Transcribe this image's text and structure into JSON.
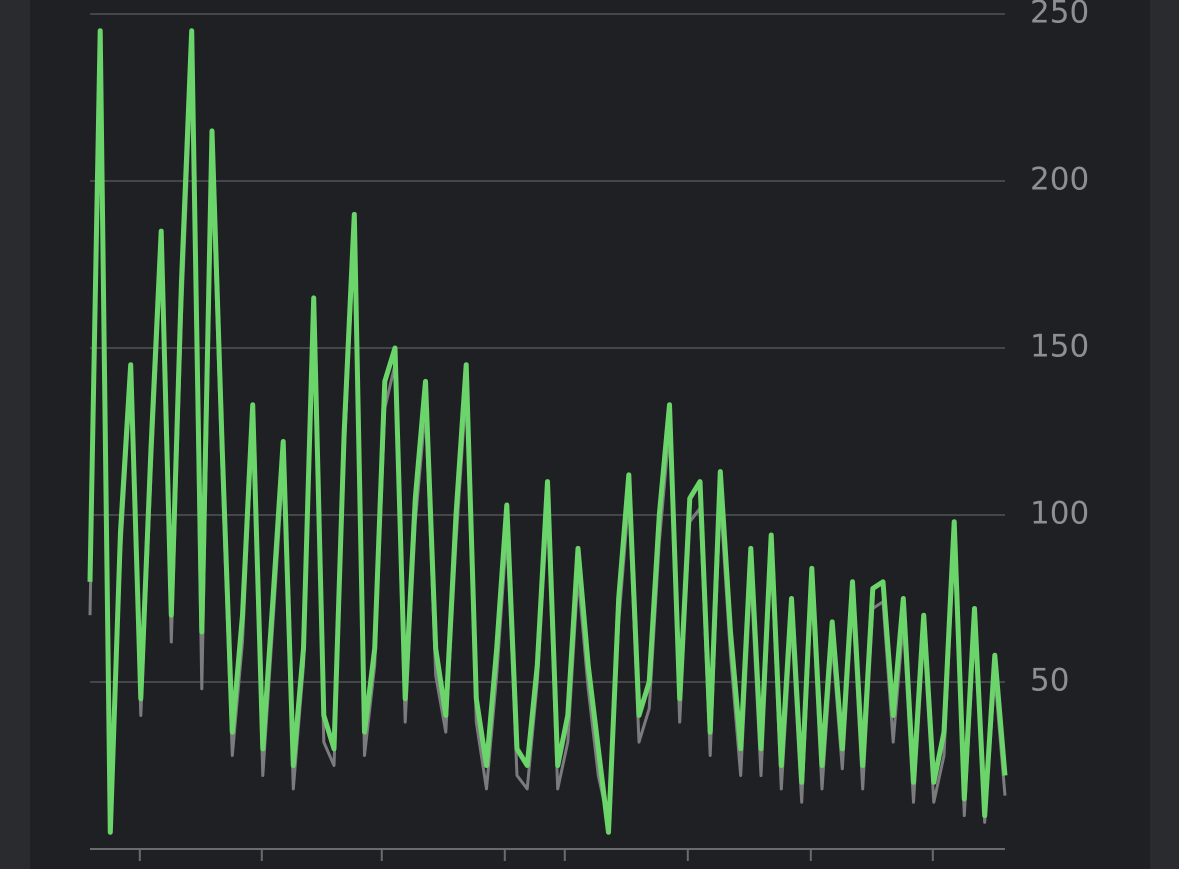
{
  "chart_data": {
    "type": "line",
    "x": [
      0,
      1,
      2,
      3,
      4,
      5,
      6,
      7,
      8,
      9,
      10,
      11,
      12,
      13,
      14,
      15,
      16,
      17,
      18,
      19,
      20,
      21,
      22,
      23,
      24,
      25,
      26,
      27,
      28,
      29,
      30,
      31,
      32,
      33,
      34,
      35,
      36,
      37,
      38,
      39,
      40,
      41,
      42,
      43,
      44,
      45,
      46,
      47,
      48,
      49,
      50,
      51,
      52,
      53,
      54,
      55,
      56,
      57,
      58,
      59,
      60,
      61,
      62,
      63,
      64,
      65,
      66,
      67,
      68,
      69,
      70,
      71,
      72,
      73,
      74,
      75,
      76,
      77,
      78,
      79,
      80,
      81,
      82,
      83,
      84,
      85,
      86,
      87,
      88,
      89,
      90
    ],
    "series": [
      {
        "color": "#7b7b7e",
        "values": [
          70,
          235,
          8,
          88,
          140,
          40,
          112,
          178,
          62,
          160,
          235,
          48,
          205,
          112,
          28,
          62,
          128,
          22,
          68,
          115,
          18,
          55,
          160,
          32,
          25,
          118,
          185,
          28,
          55,
          132,
          145,
          38,
          98,
          132,
          52,
          35,
          92,
          138,
          38,
          18,
          52,
          95,
          22,
          18,
          50,
          102,
          18,
          32,
          82,
          48,
          22,
          8,
          68,
          105,
          32,
          42,
          92,
          126,
          38,
          98,
          102,
          28,
          105,
          58,
          22,
          82,
          22,
          88,
          18,
          68,
          14,
          78,
          18,
          62,
          24,
          74,
          18,
          72,
          74,
          32,
          68,
          14,
          64,
          14,
          28,
          92,
          10,
          66,
          8,
          52,
          16
        ]
      },
      {
        "color": "#6bd46a",
        "values": [
          80,
          245,
          5,
          95,
          145,
          45,
          120,
          185,
          70,
          170,
          245,
          65,
          215,
          120,
          35,
          70,
          133,
          30,
          75,
          122,
          25,
          60,
          165,
          40,
          30,
          125,
          190,
          35,
          60,
          140,
          150,
          45,
          105,
          140,
          60,
          40,
          100,
          145,
          45,
          25,
          60,
          103,
          30,
          25,
          55,
          110,
          25,
          40,
          90,
          55,
          30,
          5,
          75,
          112,
          40,
          50,
          100,
          133,
          45,
          105,
          110,
          35,
          113,
          65,
          30,
          90,
          30,
          94,
          25,
          75,
          20,
          84,
          25,
          68,
          30,
          80,
          25,
          78,
          80,
          40,
          75,
          20,
          70,
          20,
          35,
          98,
          15,
          72,
          10,
          58,
          22
        ]
      }
    ],
    "xlim": [
      0,
      90
    ],
    "xticks": [
      4.9,
      16.9,
      28.7,
      40.8,
      46.7,
      58.8,
      70.9,
      82.9
    ],
    "ylim": [
      0,
      250
    ],
    "yticks": [
      50,
      100,
      150,
      200,
      250
    ],
    "grid": true
  }
}
